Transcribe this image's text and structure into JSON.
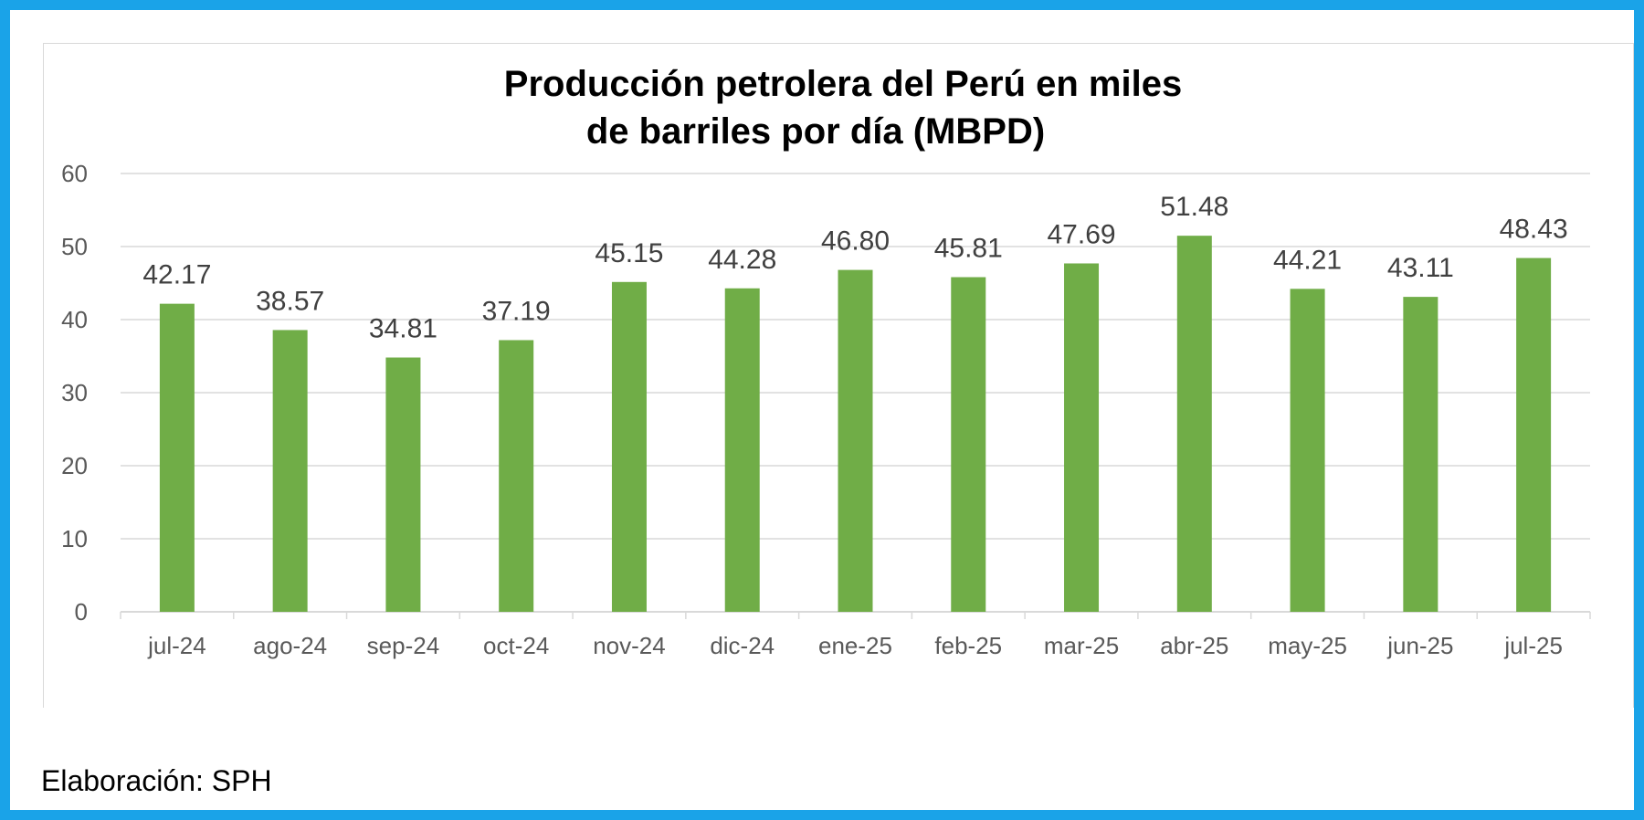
{
  "chart_data": {
    "type": "bar",
    "title_lines": [
      "Producción petrolera del Perú en miles",
      "de barriles por día (MBPD)"
    ],
    "categories": [
      "jul-24",
      "ago-24",
      "sep-24",
      "oct-24",
      "nov-24",
      "dic-24",
      "ene-25",
      "feb-25",
      "mar-25",
      "abr-25",
      "may-25",
      "jun-25",
      "jul-25"
    ],
    "values": [
      42.17,
      38.57,
      34.81,
      37.19,
      45.15,
      44.28,
      46.8,
      45.81,
      47.69,
      51.48,
      44.21,
      43.11,
      48.43
    ],
    "value_labels": [
      "42.17",
      "38.57",
      "34.81",
      "37.19",
      "45.15",
      "44.28",
      "46.80",
      "45.81",
      "47.69",
      "51.48",
      "44.21",
      "43.11",
      "48.43"
    ],
    "ylim": [
      0,
      60
    ],
    "yticks": [
      "0",
      "10",
      "20",
      "30",
      "40",
      "50",
      "60"
    ],
    "grid": true,
    "legend": "none",
    "bar_color": "#70ad47"
  },
  "footer": {
    "credit": "Elaboración: SPH"
  },
  "colors": {
    "frame": "#1aa3e8",
    "grid": "#d9d9d9"
  }
}
